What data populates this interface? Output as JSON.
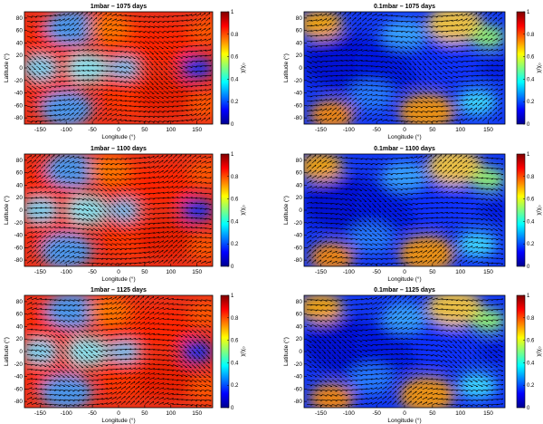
{
  "figure": {
    "panels": [
      {
        "title": "1mbar – 1075 days",
        "pressure": "1mbar",
        "day": 1075
      },
      {
        "title": "0.1mbar – 1075 days",
        "pressure": "0.1mbar",
        "day": 1075
      },
      {
        "title": "1mbar – 1100 days",
        "pressure": "1mbar",
        "day": 1100
      },
      {
        "title": "0.1mbar – 1100 days",
        "pressure": "0.1mbar",
        "day": 1100
      },
      {
        "title": "1mbar – 1125 days",
        "pressure": "1mbar",
        "day": 1125
      },
      {
        "title": "0.1mbar – 1125 days",
        "pressure": "0.1mbar",
        "day": 1125
      }
    ]
  },
  "chart_data": {
    "type": "heatmap",
    "xlabel": "Longitude (°)",
    "ylabel": "Latitude (°)",
    "colorbar_label": "χ/χ₀",
    "xlim": [
      -180,
      180
    ],
    "ylim": [
      -90,
      90
    ],
    "clim": [
      0,
      1
    ],
    "x_ticks": [
      -150,
      -100,
      -50,
      0,
      50,
      100,
      150
    ],
    "y_ticks": [
      80,
      60,
      40,
      20,
      0,
      -20,
      -40,
      -60,
      -80
    ],
    "colorbar_ticks": [
      0,
      0.2,
      0.4,
      0.6,
      0.8,
      1
    ],
    "colorbar_tick_labels": [
      "0",
      "0.2",
      "0.4",
      "0.6",
      "0.8",
      "1"
    ],
    "colormap": [
      "#00008f",
      "#0000ff",
      "#0080ff",
      "#00ffff",
      "#80ff80",
      "#ffff00",
      "#ff8000",
      "#ff0000",
      "#800000"
    ],
    "overlay": "wind velocity vectors (black arrows)"
  }
}
